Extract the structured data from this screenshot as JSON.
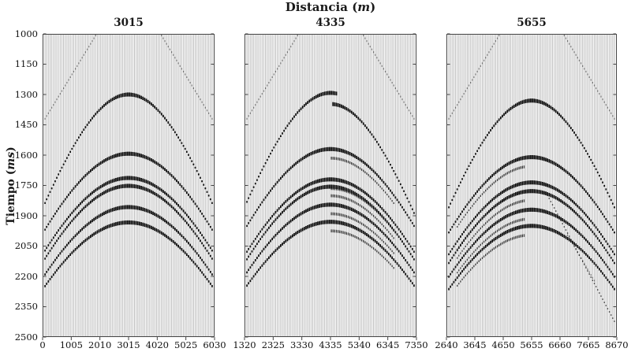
{
  "figure": {
    "title": {
      "prefix": "Distancia (",
      "italic": "m",
      "suffix": ")"
    },
    "ylabel": {
      "prefix": "Tiempo (",
      "italic": "ms",
      "suffix": ")"
    },
    "colors": {
      "background": "#ffffff",
      "trace": "#c6c6c6",
      "event": "#000000",
      "spine": "#444444",
      "text": "#1a1a1a"
    }
  },
  "chart_data": {
    "type": "scatter",
    "title": "Distancia (m)",
    "ylabel": "Tiempo (ms)",
    "description": "Three seismic shot gathers (wiggle-trace panels) with hyperbolic reflection events; time axis reversed (ms), one panel per shot position.",
    "ylim": [
      1000,
      2500
    ],
    "y_reversed": true,
    "y_tick_step": 150,
    "yticks": [
      "1000",
      "1150",
      "1300",
      "1450",
      "1600",
      "1750",
      "1900",
      "2050",
      "2200",
      "2350",
      "2500"
    ],
    "grid": false,
    "traces_per_panel": 100,
    "panels": [
      {
        "title": "3015",
        "center": 3015,
        "xlim": [
          0,
          6030
        ],
        "xticks": [
          "0",
          "1005",
          "2010",
          "3015",
          "4020",
          "5025",
          "6030"
        ],
        "events": [
          {
            "t0": 1300,
            "v": 2.3
          },
          {
            "t0": 1593,
            "v": 2.58
          },
          {
            "t0": 1713,
            "v": 2.56
          },
          {
            "t0": 1752,
            "v": 2.53
          },
          {
            "t0": 1857,
            "v": 2.57
          },
          {
            "t0": 1933,
            "v": 2.6
          }
        ],
        "lines": [
          {
            "x1": -3015,
            "t1": 1427,
            "x2": -1140,
            "t2": 1000,
            "style": "refraction"
          },
          {
            "x1": 1140,
            "t1": 1000,
            "x2": 3015,
            "t2": 1427,
            "style": "refraction"
          }
        ]
      },
      {
        "title": "4335",
        "center": 4335,
        "xlim": [
          1320,
          7350
        ],
        "xticks": [
          "1320",
          "2325",
          "3330",
          "4335",
          "5340",
          "6345",
          "7350"
        ],
        "events": [
          {
            "t0": 1292,
            "v": 2.3,
            "segments": [
              {
                "range": [
                  -3015,
                  250
                ],
                "dt": 0
              },
              {
                "range": [
                  80,
                  3015
                ],
                "dt": 55
              }
            ]
          },
          {
            "t0": 1570,
            "v": 2.58
          },
          {
            "t0": 1720,
            "v": 2.56
          },
          {
            "t0": 1756,
            "v": 2.53
          },
          {
            "t0": 1845,
            "v": 2.57
          },
          {
            "t0": 1930,
            "v": 2.6
          },
          {
            "t0": 1615,
            "v": 2.58,
            "range": [
              30,
              2300
            ],
            "style": "faint"
          },
          {
            "t0": 1765,
            "v": 2.56,
            "range": [
              30,
              2300
            ],
            "style": "faint"
          },
          {
            "t0": 1801,
            "v": 2.53,
            "range": [
              30,
              2300
            ],
            "style": "faint"
          },
          {
            "t0": 1890,
            "v": 2.57,
            "range": [
              30,
              2300
            ],
            "style": "faint"
          },
          {
            "t0": 1975,
            "v": 2.6,
            "range": [
              30,
              2300
            ],
            "style": "faint"
          }
        ],
        "lines": [
          {
            "x1": -3015,
            "t1": 1427,
            "x2": -1140,
            "t2": 1000,
            "style": "refraction"
          },
          {
            "x1": 1140,
            "t1": 1000,
            "x2": 3015,
            "t2": 1427,
            "style": "refraction"
          }
        ]
      },
      {
        "title": "5655",
        "center": 5655,
        "xlim": [
          2640,
          8670
        ],
        "xticks": [
          "2640",
          "3645",
          "4650",
          "5655",
          "6660",
          "7665",
          "8670"
        ],
        "events": [
          {
            "t0": 1330,
            "v": 2.3
          },
          {
            "t0": 1610,
            "v": 2.58
          },
          {
            "t0": 1735,
            "v": 2.56
          },
          {
            "t0": 1778,
            "v": 2.53
          },
          {
            "t0": 1870,
            "v": 2.57
          },
          {
            "t0": 1950,
            "v": 2.6
          },
          {
            "t0": 1655,
            "v": 2.58,
            "range": [
              -2700,
              -250
            ],
            "style": "faint"
          },
          {
            "t0": 1780,
            "v": 2.56,
            "range": [
              -2700,
              -250
            ],
            "style": "faint"
          },
          {
            "t0": 1823,
            "v": 2.53,
            "range": [
              -2700,
              -250
            ],
            "style": "faint"
          },
          {
            "t0": 1915,
            "v": 2.57,
            "range": [
              -2700,
              -250
            ],
            "style": "faint"
          },
          {
            "t0": 1995,
            "v": 2.6,
            "range": [
              -2700,
              -250
            ],
            "style": "faint"
          }
        ],
        "lines": [
          {
            "x1": -3015,
            "t1": 1427,
            "x2": -1140,
            "t2": 1000,
            "style": "refraction"
          },
          {
            "x1": 1140,
            "t1": 1000,
            "x2": 3015,
            "t2": 1427,
            "style": "refraction"
          },
          {
            "x1": 500,
            "t1": 1780,
            "x2": 3015,
            "t2": 2430,
            "style": "faint"
          },
          {
            "x1": 1250,
            "t1": 1985,
            "x2": 2300,
            "t2": 2230,
            "style": "refraction"
          }
        ]
      }
    ]
  }
}
